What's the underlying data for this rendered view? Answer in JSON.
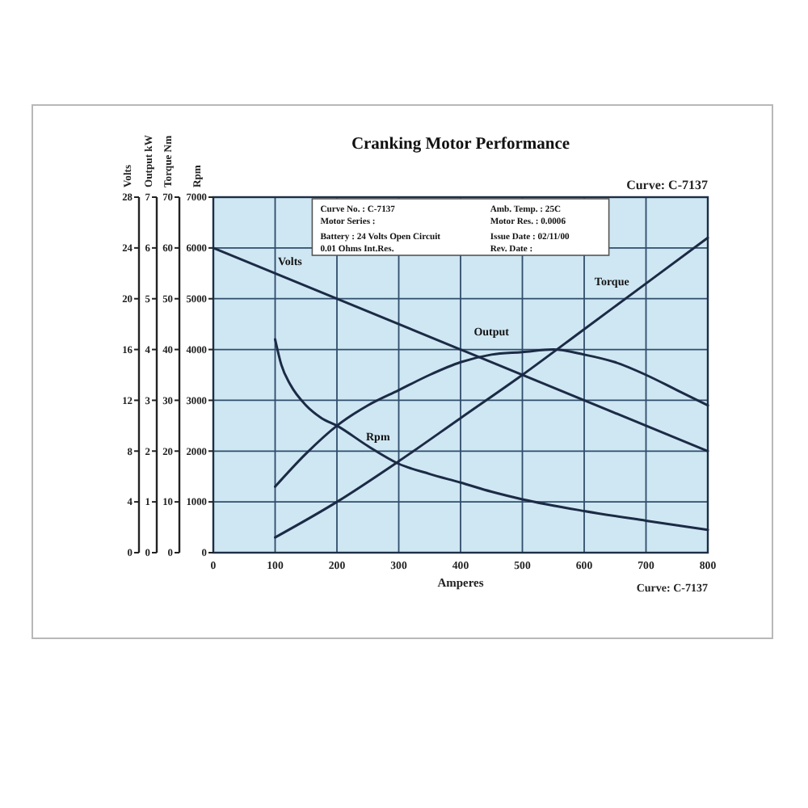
{
  "chart_data": [
    {
      "type": "line",
      "title": "Cranking Motor Performance",
      "xlabel": "Amperes",
      "ylabel": "Rpm",
      "xlim": [
        0,
        800
      ],
      "xticks": [
        0,
        100,
        200,
        300,
        400,
        500,
        600,
        700,
        800
      ],
      "ylim": [
        0,
        7000
      ],
      "yticks": [
        0,
        1000,
        2000,
        3000,
        4000,
        5000,
        6000,
        7000
      ],
      "grid": true,
      "series": [
        {
          "name": "Rpm",
          "color": "#1c2b45",
          "x": [
            100,
            110,
            125,
            150,
            175,
            200,
            250,
            300,
            350,
            400,
            450,
            500,
            600,
            700,
            800
          ],
          "values": [
            4200,
            3700,
            3300,
            2900,
            2650,
            2500,
            2100,
            1750,
            1550,
            1380,
            1200,
            1050,
            820,
            630,
            450
          ]
        }
      ],
      "annotations": [
        "Curve: C-7137",
        "Curve No. : C-7137",
        "Amb. Temp. : 25C",
        "Motor Series :",
        "Motor Res. : 0.0006",
        "Battery : 24 Volts Open Circuit",
        "Issue Date : 02/11/00",
        "0.01 Ohms Int.Res.",
        "Rev. Date :",
        "Curve: C-7137"
      ]
    },
    {
      "type": "line",
      "ylabel": "Torque Nm",
      "xlim": [
        0,
        800
      ],
      "ylim": [
        0,
        70
      ],
      "yticks": [
        0,
        10,
        20,
        30,
        40,
        50,
        60,
        70
      ],
      "tick_labels": "y",
      "series": [
        {
          "name": "Torque",
          "color": "#1c2b45",
          "x": [
            100,
            200,
            300,
            400,
            500,
            600,
            700,
            800
          ],
          "values": [
            3,
            10,
            18,
            26.5,
            35,
            44,
            53,
            62
          ]
        }
      ]
    },
    {
      "type": "line",
      "ylabel": "Output kW",
      "xlim": [
        0,
        800
      ],
      "ylim": [
        0,
        7
      ],
      "yticks": [
        0,
        1,
        2,
        3,
        4,
        5,
        6,
        7
      ],
      "tick_labels": "y",
      "series": [
        {
          "name": "Output",
          "color": "#1c2b45",
          "x": [
            100,
            150,
            200,
            250,
            300,
            350,
            400,
            450,
            500,
            550,
            600,
            650,
            700,
            750,
            800
          ],
          "values": [
            1.3,
            1.95,
            2.5,
            2.9,
            3.2,
            3.5,
            3.75,
            3.9,
            3.95,
            4,
            3.9,
            3.75,
            3.5,
            3.2,
            2.9
          ]
        }
      ]
    },
    {
      "type": "line",
      "ylabel": "Volts",
      "xlim": [
        0,
        800
      ],
      "ylim": [
        0,
        28
      ],
      "yticks": [
        0,
        4,
        8,
        12,
        16,
        20,
        24,
        28
      ],
      "tick_labels": "y",
      "series": [
        {
          "name": "Volts",
          "color": "#1c2b45",
          "x": [
            0,
            400,
            800
          ],
          "values": [
            24,
            16,
            8
          ]
        }
      ]
    }
  ]
}
